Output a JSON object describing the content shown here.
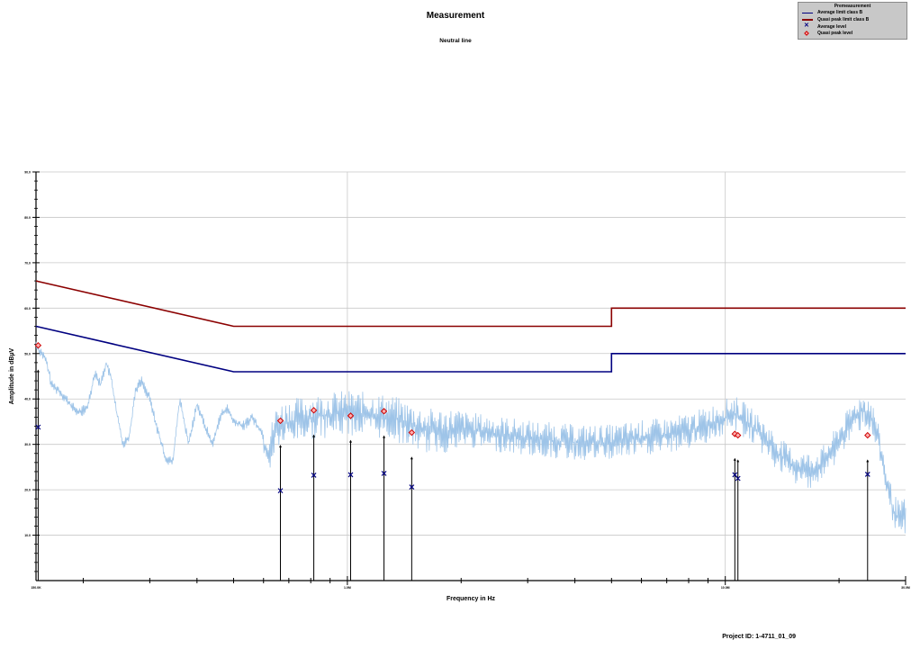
{
  "chart_data": {
    "type": "line",
    "title": "Measurement",
    "subtitle": "Neutral line",
    "xlabel": "Frequency in Hz",
    "ylabel": "Amplitude in dBµV",
    "x_scale": "log",
    "xlim": [
      150000,
      30000000
    ],
    "ylim": [
      0,
      90
    ],
    "x_tick_labels": [
      "150.0K",
      "1.0M",
      "10.0M",
      "30.0M"
    ],
    "x_tick_values": [
      150000,
      1000000,
      10000000,
      30000000
    ],
    "y_tick_values": [
      10,
      20,
      30,
      40,
      50,
      60,
      70,
      80,
      90
    ],
    "y_tick_labels": [
      "10.0",
      "20.0",
      "30.0",
      "40.0",
      "50.0",
      "60.0",
      "70.0",
      "80.0",
      "90.0"
    ],
    "grid": true,
    "legend_position": "top-right",
    "legend_entries": [
      "Premeasurement",
      "Average limit class B",
      "Quasi peak limit class B",
      "Average level",
      "Quasi peak level"
    ],
    "colors": {
      "premeasurement": "#9ec4e8",
      "average_limit": "#000080",
      "quasi_peak_limit": "#8b0000",
      "average_level": "#000080",
      "quasi_peak_level": "#cc0000",
      "grid": "#c8c8c8"
    },
    "series": [
      {
        "name": "Average limit class B",
        "x": [
          150000,
          500000,
          5000000,
          5000000,
          30000000
        ],
        "y": [
          56,
          46,
          46,
          50,
          50
        ]
      },
      {
        "name": "Quasi peak limit class B",
        "x": [
          150000,
          500000,
          5000000,
          5000000,
          30000000
        ],
        "y": [
          66,
          56,
          56,
          60,
          60
        ]
      },
      {
        "name": "Quasi peak level",
        "x": [
          152000,
          665000,
          815000,
          1020000,
          1250000,
          1480000,
          10600000,
          10800000,
          23800000
        ],
        "y": [
          51.8,
          35.2,
          37.5,
          36.3,
          37.3,
          32.6,
          32.3,
          32.0,
          32.0
        ]
      },
      {
        "name": "Average level",
        "x": [
          152000,
          665000,
          815000,
          1020000,
          1250000,
          1480000,
          10600000,
          10800000,
          23800000
        ],
        "y": [
          33.8,
          19.8,
          23.2,
          23.3,
          23.6,
          20.6,
          23.3,
          22.5,
          23.4
        ]
      },
      {
        "name": "Premeasurement",
        "x": [
          150000,
          152000,
          156000,
          160000,
          165000,
          172000,
          180000,
          188000,
          195000,
          205000,
          215000,
          222000,
          230000,
          238000,
          245000,
          255000,
          265000,
          275000,
          285000,
          300000,
          315000,
          330000,
          345000,
          360000,
          380000,
          400000,
          420000,
          440000,
          460000,
          480000,
          500000,
          530000,
          560000,
          590000,
          620000,
          650000,
          700000,
          800000,
          1000000,
          1300000,
          1600000,
          2000000,
          3000000,
          4000000,
          5000000,
          6000000,
          7000000,
          8000000,
          9000000,
          10000000,
          10500000,
          11000000,
          12000000,
          13000000,
          14000000,
          15000000,
          16000000,
          17000000,
          18000000,
          19000000,
          20000000,
          21000000,
          22000000,
          23000000,
          24000000,
          25000000,
          26000000,
          27000000,
          28000000,
          29000000,
          30000000
        ],
        "y": [
          52,
          51,
          50,
          48,
          43,
          42,
          40,
          38,
          37,
          38,
          46,
          43,
          48,
          44,
          37,
          30,
          32,
          42,
          44,
          40,
          33,
          27,
          26,
          40,
          30,
          39,
          34,
          30,
          36,
          38,
          35,
          34,
          36,
          33,
          30,
          36,
          37,
          38,
          39,
          38,
          35,
          35,
          33,
          32,
          32,
          33,
          33.5,
          34.5,
          36,
          37.5,
          38.5,
          37.5,
          35,
          32,
          29,
          27,
          26,
          26,
          27,
          29.5,
          32.5,
          35,
          37.5,
          39,
          38.5,
          35,
          28,
          21,
          16.5,
          15,
          16
        ]
      }
    ]
  },
  "legend": {
    "premeasurement": "Premeasurement",
    "average_limit": "Average limit class B",
    "quasi_peak_limit": "Quasi peak limit class B",
    "average_level": "Average level",
    "quasi_peak_level": "Quasi peak level"
  },
  "footer": {
    "project_id": "Project ID: 1-4711_01_09"
  }
}
